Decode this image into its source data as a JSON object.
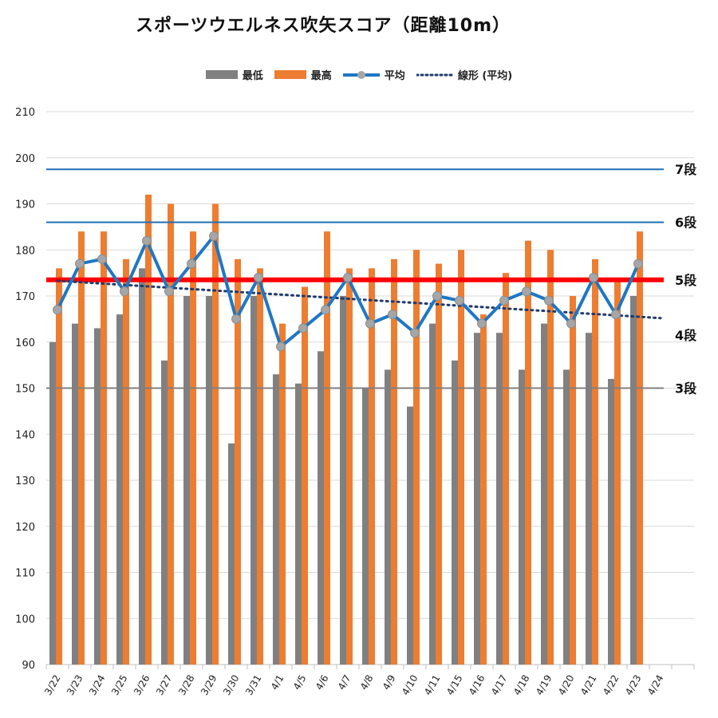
{
  "chart_data": {
    "type": "bar",
    "title": "スポーツウエルネス吹矢スコア（距離10m）",
    "xlabel": "",
    "ylabel": "",
    "ylim": [
      90,
      210
    ],
    "yticks": [
      90,
      100,
      110,
      120,
      130,
      140,
      150,
      160,
      170,
      180,
      190,
      200,
      210
    ],
    "grid": true,
    "legend_position": "top",
    "categories": [
      "3/22",
      "3/23",
      "3/24",
      "3/25",
      "3/26",
      "3/27",
      "3/28",
      "3/29",
      "3/30",
      "3/31",
      "4/1",
      "4/5",
      "4/6",
      "4/7",
      "4/8",
      "4/9",
      "4/10",
      "4/11",
      "4/15",
      "4/16",
      "4/17",
      "4/18",
      "4/19",
      "4/20",
      "4/21",
      "4/22",
      "4/23",
      "4/24"
    ],
    "series": [
      {
        "name": "最低",
        "kind": "bar",
        "color": "#808080",
        "values": [
          160,
          164,
          163,
          166,
          176,
          156,
          170,
          170,
          138,
          170,
          153,
          151,
          158,
          170,
          150,
          154,
          146,
          164,
          156,
          162,
          162,
          154,
          164,
          154,
          162,
          152,
          170,
          null
        ]
      },
      {
        "name": "最高",
        "kind": "bar",
        "color": "#ED7D31",
        "values": [
          176,
          184,
          184,
          178,
          192,
          190,
          184,
          190,
          178,
          176,
          164,
          172,
          184,
          176,
          176,
          178,
          180,
          177,
          180,
          166,
          175,
          182,
          180,
          170,
          178,
          174,
          184,
          null
        ]
      },
      {
        "name": "平均",
        "kind": "line",
        "color": "#1F77C4",
        "values": [
          167,
          177,
          178,
          171,
          182,
          171,
          177,
          183,
          165,
          174,
          159,
          163,
          167,
          174,
          164,
          166,
          162,
          170,
          169,
          164,
          169,
          171,
          169,
          164,
          174,
          166,
          177,
          null
        ]
      },
      {
        "name": "線形 (平均)",
        "kind": "trendline",
        "color": "#1F3A6E",
        "values": [
          173.3,
          173.0,
          172.7,
          172.4,
          172.1,
          171.8,
          171.5,
          171.2,
          170.9,
          170.6,
          170.3,
          170.0,
          169.7,
          169.4,
          169.1,
          168.8,
          168.5,
          168.2,
          167.9,
          167.6,
          167.3,
          167.0,
          166.7,
          166.4,
          166.1,
          165.8,
          165.5,
          165.2
        ]
      }
    ],
    "reference_lines": [
      {
        "label": "7段",
        "value": 197.5,
        "color": "#1F6FB4",
        "label_color": "#111111"
      },
      {
        "label": "6段",
        "value": 186,
        "color": "#1F6FB4",
        "label_color": "#111111"
      },
      {
        "label": "5段",
        "value": 173.5,
        "color": "#FF0000",
        "label_color": "#1F6FB4"
      },
      {
        "label": "4段",
        "value": 161.5,
        "color": null,
        "label_color": "#111111"
      },
      {
        "label": "3段",
        "value": 150,
        "color": "#808080",
        "label_color": "#111111"
      }
    ]
  }
}
